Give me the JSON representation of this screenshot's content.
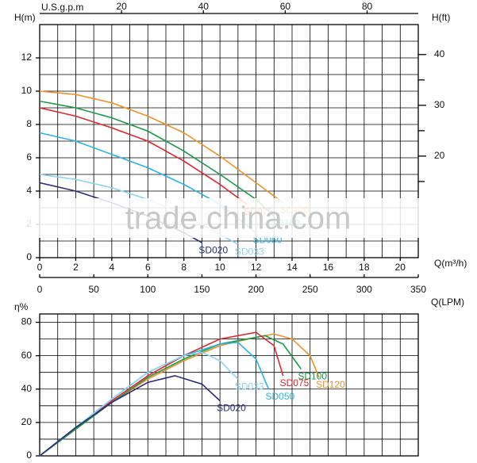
{
  "chart_data": [
    {
      "type": "line",
      "ylabel": "H(m)",
      "xlabel": "Q(m³/h)",
      "xlim": [
        0,
        21
      ],
      "xticks": [
        0,
        2,
        4,
        6,
        8,
        10,
        12,
        14,
        16,
        18,
        20
      ],
      "xgrid": [
        0,
        1,
        2,
        3,
        4,
        5,
        6,
        7,
        8,
        9,
        10,
        11,
        12,
        13,
        14,
        15,
        16,
        17,
        18,
        19,
        20,
        21
      ],
      "ylim": [
        0,
        14
      ],
      "yticks": [
        0,
        2,
        4,
        6,
        8,
        10,
        12
      ],
      "ygrid": [
        0,
        1,
        2,
        3,
        4,
        5,
        6,
        7,
        8,
        9,
        10,
        11,
        12,
        13,
        14
      ],
      "x2label": "U.S.g.p.m",
      "x2lim": [
        0,
        92.5
      ],
      "x2ticks": [
        20,
        40,
        60,
        80
      ],
      "x3label": "Q(LPM)",
      "x3lim": [
        0,
        350
      ],
      "x3ticks": [
        0,
        50,
        100,
        150,
        200,
        250,
        300,
        350
      ],
      "y2label": "H(ft)",
      "y2lim": [
        0,
        45.9
      ],
      "y2ticks": [
        20,
        30,
        40
      ],
      "y2minor": [
        15,
        25,
        35
      ],
      "watermark": "trade.china.com",
      "series": [
        {
          "name": "SD120",
          "color": "#f0922a",
          "x": [
            0,
            2,
            4,
            6,
            8,
            10,
            12,
            13.5
          ],
          "values": [
            10,
            9.8,
            9.3,
            8.5,
            7.5,
            6.1,
            4.5,
            3.3
          ]
        },
        {
          "name": "SD100",
          "color": "#1a9a4a",
          "x": [
            0,
            2,
            4,
            6,
            8,
            10,
            12,
            13
          ],
          "values": [
            9.4,
            9.0,
            8.4,
            7.6,
            6.4,
            5.0,
            3.5,
            2.5
          ]
        },
        {
          "name": "SD075",
          "color": "#e0262e",
          "x": [
            0,
            2,
            4,
            6,
            8,
            10,
            11.5
          ],
          "values": [
            9.0,
            8.5,
            7.8,
            7.0,
            5.8,
            4.4,
            3.2
          ]
        },
        {
          "name": "SD050",
          "color": "#2ab3e6",
          "x": [
            0,
            2,
            4,
            6,
            8,
            10,
            12
          ],
          "values": [
            7.5,
            7.0,
            6.2,
            5.4,
            4.4,
            3.2,
            1.5
          ]
        },
        {
          "name": "SD033",
          "color": "#8fd3ef",
          "x": [
            0,
            2,
            4,
            6,
            8,
            10,
            11
          ],
          "values": [
            5.0,
            4.7,
            4.2,
            3.5,
            2.6,
            1.4,
            0.8
          ]
        },
        {
          "name": "SD020",
          "color": "#2b2a7a",
          "x": [
            0,
            2,
            4,
            6,
            8,
            9
          ],
          "values": [
            4.5,
            4.0,
            3.3,
            2.5,
            1.5,
            0.9
          ]
        }
      ]
    },
    {
      "type": "line",
      "ylabel": "η%",
      "xlim": [
        0,
        21
      ],
      "xgrid": [
        0,
        1,
        2,
        3,
        4,
        5,
        6,
        7,
        8,
        9,
        10,
        11,
        12,
        13,
        14,
        15,
        16,
        17,
        18,
        19,
        20,
        21
      ],
      "ylim": [
        0,
        85
      ],
      "yticks": [
        0,
        20,
        40,
        60,
        80
      ],
      "ygrid": [
        0,
        10,
        20,
        30,
        40,
        50,
        60,
        70,
        80
      ],
      "series": [
        {
          "name": "SD120",
          "color": "#f0922a",
          "x": [
            0,
            2,
            4,
            6,
            8,
            10,
            12,
            13,
            14,
            15,
            15.5
          ],
          "values": [
            0,
            16,
            32,
            46,
            57,
            66,
            71,
            73,
            70,
            60,
            47
          ]
        },
        {
          "name": "SD100",
          "color": "#1a9a4a",
          "x": [
            0,
            2,
            4,
            6,
            8,
            10,
            12,
            12.5,
            13.5,
            14.5
          ],
          "values": [
            0,
            16,
            32,
            47,
            58,
            67,
            71,
            72,
            67,
            52
          ]
        },
        {
          "name": "SD075",
          "color": "#e0262e",
          "x": [
            0,
            2,
            4,
            6,
            8,
            10,
            12,
            13,
            13.5
          ],
          "values": [
            0,
            17,
            33,
            48,
            60,
            70,
            74,
            66,
            48
          ]
        },
        {
          "name": "SD050",
          "color": "#2ab3e6",
          "x": [
            0,
            2,
            4,
            6,
            8,
            10,
            11,
            12,
            12.7
          ],
          "values": [
            0,
            17,
            34,
            50,
            60,
            67,
            68,
            58,
            40
          ]
        },
        {
          "name": "SD033",
          "color": "#8fd3ef",
          "x": [
            0,
            2,
            4,
            6,
            8,
            9,
            10,
            11
          ],
          "values": [
            0,
            17,
            34,
            50,
            60,
            62,
            57,
            46
          ]
        },
        {
          "name": "SD020",
          "color": "#2b2a7a",
          "x": [
            0,
            2,
            4,
            6,
            7.5,
            9,
            10
          ],
          "values": [
            0,
            17,
            32,
            44,
            48,
            43,
            33
          ]
        }
      ]
    }
  ]
}
